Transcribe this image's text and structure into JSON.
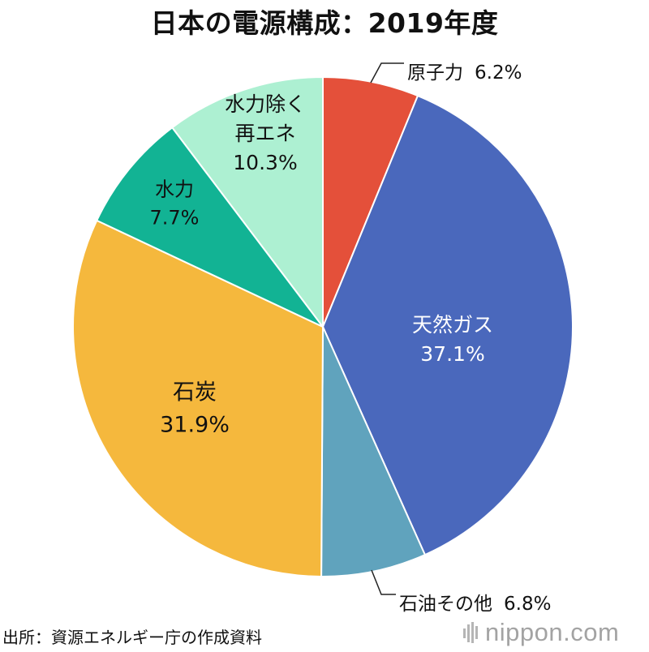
{
  "title": "日本の電源構成：2019年度",
  "source": "出所：資源エネルギー庁の作成資料",
  "brand": {
    "text": "nippon.com",
    "icon": "nippon-logo-icon"
  },
  "chart_data": {
    "type": "pie",
    "title": "日本の電源構成：2019年度",
    "start": "12 o'clock",
    "direction": "clockwise",
    "slices": [
      {
        "name": "原子力",
        "lines": [
          "原子力"
        ],
        "value": 6.2,
        "label": "6.2%",
        "color": "#e4503a",
        "text_color": "#111111"
      },
      {
        "name": "天然ガス",
        "lines": [
          "天然ガス"
        ],
        "value": 37.1,
        "label": "37.1%",
        "color": "#4a68bc",
        "text_color": "#ffffff"
      },
      {
        "name": "石油その他",
        "lines": [
          "石油その他"
        ],
        "value": 6.8,
        "label": "6.8%",
        "color": "#60a3bd",
        "text_color": "#111111"
      },
      {
        "name": "石炭",
        "lines": [
          "石炭"
        ],
        "value": 31.9,
        "label": "31.9%",
        "color": "#f5b83d",
        "text_color": "#111111"
      },
      {
        "name": "水力",
        "lines": [
          "水力"
        ],
        "value": 7.7,
        "label": "7.7%",
        "color": "#12b394",
        "text_color": "#111111"
      },
      {
        "name": "水力除く再エネ",
        "lines": [
          "水力除く",
          "再エネ"
        ],
        "value": 10.3,
        "label": "10.3%",
        "color": "#adf0d2",
        "text_color": "#111111"
      }
    ]
  }
}
